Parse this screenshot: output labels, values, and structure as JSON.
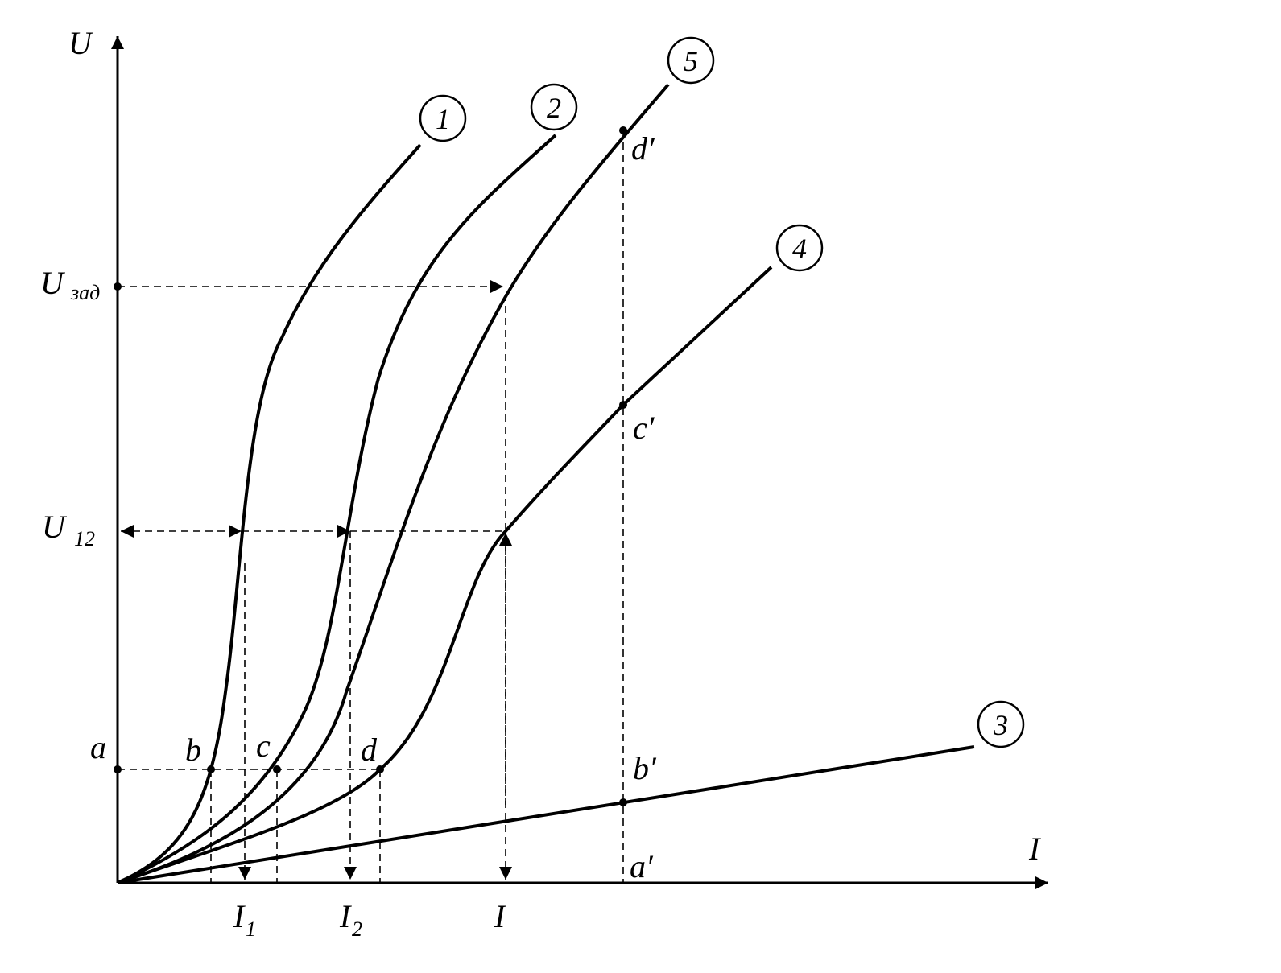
{
  "axes": {
    "y_label": "U",
    "x_label": "I"
  },
  "levels": [
    {
      "main": "U",
      "sub": "зад"
    },
    {
      "main": "U",
      "sub": "12"
    },
    {
      "main": "a"
    }
  ],
  "points": [
    "b",
    "c",
    "d",
    "a′",
    "b′",
    "c′",
    "d′"
  ],
  "curves": [
    "1",
    "2",
    "3",
    "4",
    "5"
  ],
  "currents": [
    {
      "main": "I",
      "sub": "1"
    },
    {
      "main": "I",
      "sub": "2"
    },
    {
      "main": "I"
    }
  ]
}
